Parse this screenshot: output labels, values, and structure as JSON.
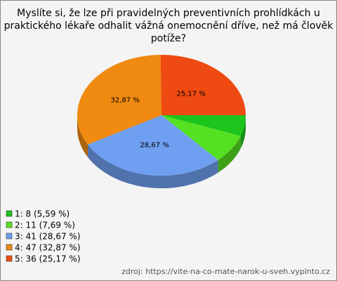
{
  "chart_data": {
    "type": "pie3d",
    "title": [
      "Myslíte si, že lze při pravidelných preventivních prohlídkách u",
      "praktického lékaře odhalit vážná onemocnění dříve, než má člověk",
      "potíže?"
    ],
    "categories": [
      "1: 8 (5,59 %)",
      "2: 11 (7,69 %)",
      "3: 41 (28,67 %)",
      "4: 47 (32,87 %)",
      "5: 36 (25,17 %)"
    ],
    "values": [
      5.59,
      7.69,
      28.67,
      32.87,
      25.17
    ],
    "value_labels": [
      null,
      null,
      "28,67 %",
      "32,87 %",
      "25,17 %"
    ],
    "colors": [
      "#1cc41c",
      "#55e022",
      "#6f9ff0",
      "#f08a10",
      "#ee4a12"
    ],
    "legend": "bottom-left",
    "source": "zdroj: https://vite-na-co-mate-narok-u-sveh.vyplnto.cz"
  }
}
